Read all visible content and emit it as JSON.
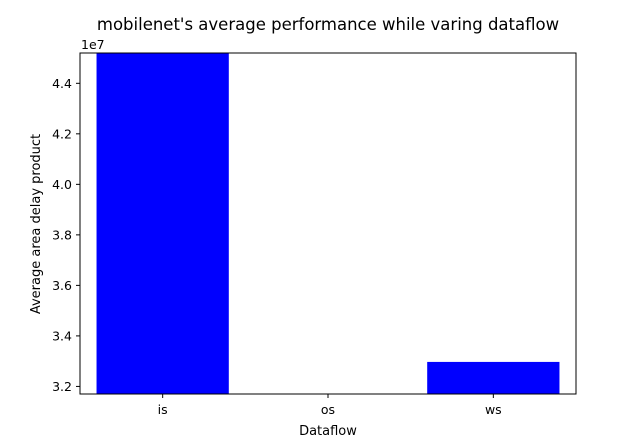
{
  "chart_data": {
    "type": "bar",
    "title": "mobilenet's average performance while varing dataflow",
    "xlabel": "Dataflow",
    "ylabel": "Average area delay product",
    "y_offset_label": "1e7",
    "categories": [
      "is",
      "os",
      "ws"
    ],
    "values": [
      45200000,
      31500000,
      32970000
    ],
    "ylim": [
      31700000,
      45200000
    ],
    "yticks": [
      32000000,
      34000000,
      36000000,
      38000000,
      40000000,
      42000000,
      44000000
    ],
    "ytick_labels": [
      "3.2",
      "3.4",
      "3.6",
      "3.8",
      "4.0",
      "4.2",
      "4.4"
    ],
    "bar_color": "#0000ff",
    "grid": false,
    "legend": "none"
  }
}
